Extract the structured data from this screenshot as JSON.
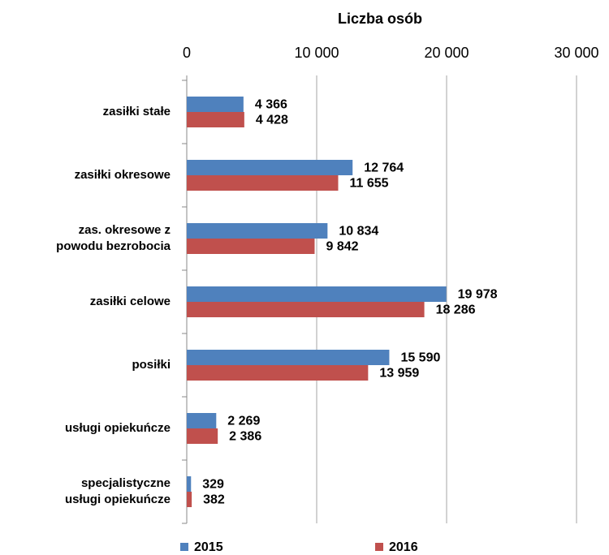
{
  "chart_data": {
    "type": "barh",
    "title": "Liczba osób",
    "categories": [
      "zasiłki stałe",
      "zasiłki okresowe",
      "zas. okresowe z\npowodu bezrobocia",
      "zasiłki celowe",
      "posiłki",
      "usługi opiekuńcze",
      "specjalistyczne\nusługi opiekuńcze"
    ],
    "series": [
      {
        "name": "2015",
        "color": "#4f81bd",
        "values": [
          4366,
          12764,
          10834,
          19978,
          15590,
          2269,
          329
        ],
        "value_labels": [
          "4 366",
          "12 764",
          "10 834",
          "19 978",
          "15 590",
          "2 269",
          "329"
        ]
      },
      {
        "name": "2016",
        "color": "#c0504d",
        "values": [
          4428,
          11655,
          9842,
          18286,
          13959,
          2386,
          382
        ],
        "value_labels": [
          "4 428",
          "11 655",
          "9 842",
          "18 286",
          "13 959",
          "2 386",
          "382"
        ]
      }
    ],
    "xlim": [
      0,
      30000
    ],
    "xticks": [
      0,
      {
        "value": 10000,
        "label": "10 000"
      },
      {
        "value": 20000,
        "label": "20 000"
      },
      {
        "value": 30000,
        "label": "30 000"
      }
    ],
    "grid": true,
    "legend": "bottom"
  }
}
